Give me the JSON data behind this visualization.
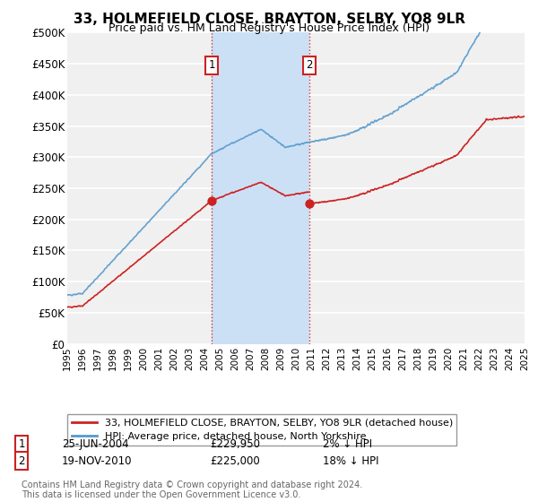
{
  "title": "33, HOLMEFIELD CLOSE, BRAYTON, SELBY, YO8 9LR",
  "subtitle": "Price paid vs. HM Land Registry's House Price Index (HPI)",
  "ylabel_ticks": [
    "£0",
    "£50K",
    "£100K",
    "£150K",
    "£200K",
    "£250K",
    "£300K",
    "£350K",
    "£400K",
    "£450K",
    "£500K"
  ],
  "ytick_values": [
    0,
    50000,
    100000,
    150000,
    200000,
    250000,
    300000,
    350000,
    400000,
    450000,
    500000
  ],
  "ylim": [
    0,
    500000
  ],
  "xlim_start": 1995.0,
  "xlim_end": 2025.0,
  "hpi_color": "#5599cc",
  "price_color": "#cc2222",
  "purchase1_date": 2004.48,
  "purchase1_price": 229950,
  "purchase2_date": 2010.89,
  "purchase2_price": 225000,
  "legend_line1": "33, HOLMEFIELD CLOSE, BRAYTON, SELBY, YO8 9LR (detached house)",
  "legend_line2": "HPI: Average price, detached house, North Yorkshire",
  "annotation1_text": "25-JUN-2004",
  "annotation1_price": "£229,950",
  "annotation1_hpi": "2% ↓ HPI",
  "annotation2_text": "19-NOV-2010",
  "annotation2_price": "£225,000",
  "annotation2_hpi": "18% ↓ HPI",
  "footer": "Contains HM Land Registry data © Crown copyright and database right 2024.\nThis data is licensed under the Open Government Licence v3.0.",
  "background_color": "#ffffff",
  "plot_bg_color": "#f0f0f0",
  "shade_color": "#cce0f5",
  "grid_color": "#ffffff",
  "hpi_discount_p1": 0.02,
  "hpi_discount_p2": 0.18
}
